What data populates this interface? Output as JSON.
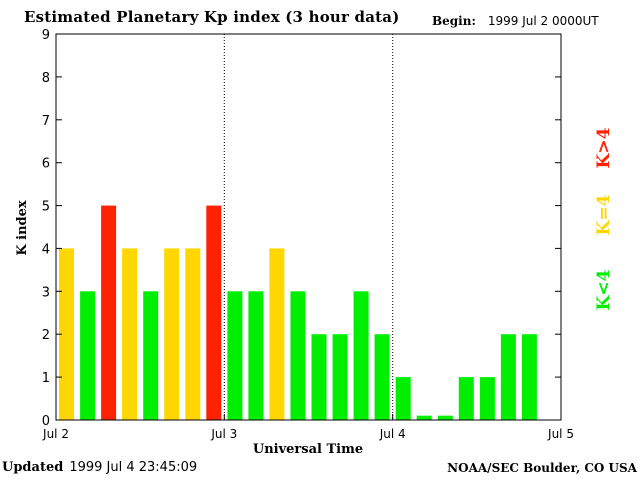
{
  "header": {
    "title": "Estimated Planetary Kp index (3 hour data)",
    "begin_label": "Begin:",
    "begin_value": "1999 Jul 2 0000UT"
  },
  "footer": {
    "updated_label": "Updated",
    "updated_value": "1999 Jul  4 23:45:09",
    "credit": "NOAA/SEC Boulder, CO USA"
  },
  "colors": {
    "low": "#00ee00",
    "moderate": "#ffd700",
    "high": "#ff2200",
    "background": "#ffffff",
    "axis": "#000000"
  },
  "legend": {
    "low": "K<4",
    "moderate": "K=4",
    "high": "K>4"
  },
  "chart_data": {
    "type": "bar",
    "title": "Estimated Planetary Kp index (3 hour data)",
    "xlabel": "Universal Time",
    "ylabel": "K index",
    "ylim": [
      0,
      9
    ],
    "yticks": [
      0,
      1,
      2,
      3,
      4,
      5,
      6,
      7,
      8,
      9
    ],
    "x_day_labels": [
      "Jul 2",
      "Jul 3",
      "Jul 4",
      "Jul 5"
    ],
    "day_separators_at_day": [
      1,
      2
    ],
    "interval_hours": 3,
    "values": [
      4,
      3,
      5,
      4,
      3,
      4,
      4,
      5,
      3,
      3,
      4,
      3,
      2,
      2,
      3,
      2,
      1,
      0.1,
      0.1,
      1,
      1,
      2,
      2
    ],
    "legend": [
      {
        "label": "K<4",
        "condition": "K<4",
        "color": "#00ee00"
      },
      {
        "label": "K=4",
        "condition": "K=4",
        "color": "#ffd700"
      },
      {
        "label": "K>4",
        "condition": "K>4",
        "color": "#ff2200"
      }
    ]
  }
}
